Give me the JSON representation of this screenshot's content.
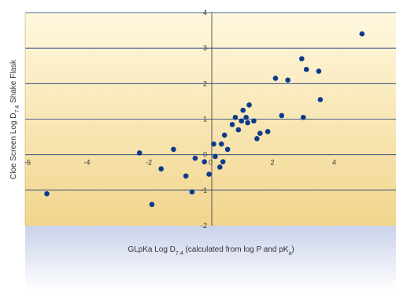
{
  "chart_data": {
    "type": "scatter",
    "title": "",
    "xlabel": {
      "main": "GLpKa Log D",
      "sub": "7.4",
      "mid": " (calculated from log P and pK",
      "sub2": "a",
      "end": ")"
    },
    "ylabel": {
      "main": "Cloe Screen Log D",
      "sub": "7.4",
      "end": " Shake Flask"
    },
    "xlim": [
      -6,
      6
    ],
    "ylim": [
      -2,
      4
    ],
    "x_ticks": [
      -6,
      -4,
      -2,
      0,
      2,
      4
    ],
    "x_tick_labels": [
      "-6",
      "-4",
      "-2",
      "0",
      "2",
      "4"
    ],
    "y_ticks": [
      -2,
      -1,
      0,
      1,
      2,
      3,
      4
    ],
    "y_tick_labels": [
      "-2",
      "-1",
      "0",
      "1",
      "2",
      "3",
      "4"
    ],
    "grid": "horizontal",
    "colors": {
      "points": "#0d3a8c",
      "gridline": "#1a3a7a",
      "plot_top": "#fff8de",
      "plot_bottom": "#f1d58d",
      "below_top": "#c9d2ea",
      "below_bottom": "#ffffff"
    },
    "points": [
      {
        "x": -5.3,
        "y": -1.1
      },
      {
        "x": -2.3,
        "y": 0.05
      },
      {
        "x": -1.9,
        "y": -1.4
      },
      {
        "x": -1.6,
        "y": -0.4
      },
      {
        "x": -1.2,
        "y": 0.15
      },
      {
        "x": -0.8,
        "y": -0.6
      },
      {
        "x": -0.6,
        "y": -1.05
      },
      {
        "x": -0.5,
        "y": -0.1
      },
      {
        "x": -0.2,
        "y": -0.2
      },
      {
        "x": -0.05,
        "y": -0.55
      },
      {
        "x": 0.1,
        "y": 0.3
      },
      {
        "x": 0.15,
        "y": -0.05
      },
      {
        "x": 0.3,
        "y": -0.35
      },
      {
        "x": 0.35,
        "y": 0.3
      },
      {
        "x": 0.4,
        "y": -0.2
      },
      {
        "x": 0.45,
        "y": 0.55
      },
      {
        "x": 0.55,
        "y": 0.15
      },
      {
        "x": 0.7,
        "y": 0.85
      },
      {
        "x": 0.8,
        "y": 1.05
      },
      {
        "x": 0.9,
        "y": 0.7
      },
      {
        "x": 1.0,
        "y": 0.95
      },
      {
        "x": 1.05,
        "y": 1.25
      },
      {
        "x": 1.15,
        "y": 1.05
      },
      {
        "x": 1.2,
        "y": 0.9
      },
      {
        "x": 1.25,
        "y": 1.4
      },
      {
        "x": 1.4,
        "y": 0.95
      },
      {
        "x": 1.5,
        "y": 0.45
      },
      {
        "x": 1.6,
        "y": 0.6
      },
      {
        "x": 1.85,
        "y": 0.65
      },
      {
        "x": 2.1,
        "y": 2.15
      },
      {
        "x": 2.3,
        "y": 1.1
      },
      {
        "x": 2.5,
        "y": 2.1
      },
      {
        "x": 2.95,
        "y": 2.7
      },
      {
        "x": 3.0,
        "y": 1.05
      },
      {
        "x": 3.1,
        "y": 2.4
      },
      {
        "x": 3.5,
        "y": 2.35
      },
      {
        "x": 3.55,
        "y": 1.55
      },
      {
        "x": 4.9,
        "y": 3.4
      }
    ]
  }
}
